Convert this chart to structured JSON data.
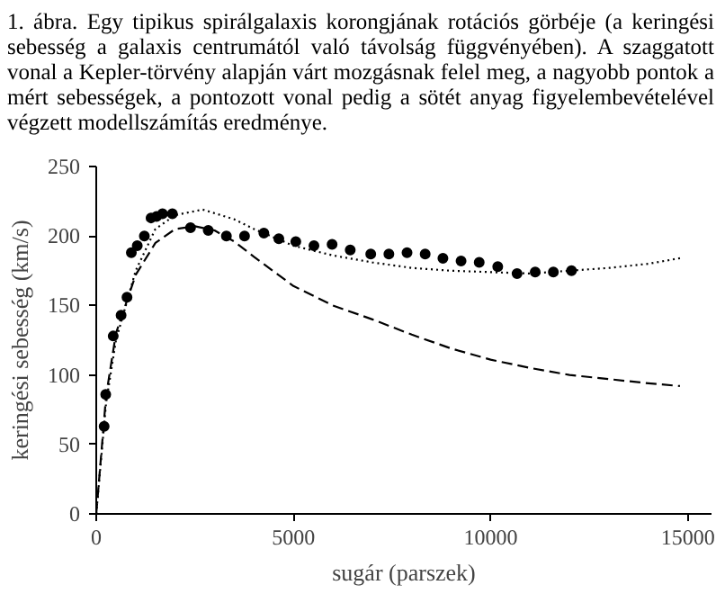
{
  "chart_data": {
    "type": "scatter",
    "title": "1. ábra. Egy tipikus spirálgalaxis korongjának rotációs görbéje (a keringési sebesség a galaxis centrumától való távolság függvényében). A szaggatott vonal a Kepler-törvény alapján várt mozgásnak felel meg, a nagyobb pontok a mért sebességek, a pontozott vonal pedig a sötét anyag figyelembevételével végzett modellszámítás eredménye.",
    "xlabel": "sugár (parszek)",
    "ylabel": "keringési sebesség (km/s)",
    "xlim": [
      0,
      15600
    ],
    "ylim": [
      0,
      250
    ],
    "xticks": [
      0,
      5000,
      10000,
      15000
    ],
    "yticks": [
      0,
      50,
      100,
      150,
      200,
      250
    ],
    "grid": false,
    "series": [
      {
        "marker": "circle",
        "color": "#000000",
        "x": [
          200,
          240,
          430,
          630,
          780,
          890,
          1040,
          1220,
          1390,
          1530,
          1680,
          1930,
          2390,
          2840,
          3300,
          3760,
          4250,
          4630,
          5060,
          5520,
          5980,
          6440,
          6960,
          7420,
          7880,
          8340,
          8790,
          9250,
          9710,
          10180,
          10670,
          11130,
          11590,
          12050
        ],
        "values": [
          63,
          86,
          128,
          143,
          156,
          188,
          193,
          200,
          213,
          214,
          216,
          216,
          206,
          204,
          200,
          200,
          202,
          198,
          196,
          193,
          194,
          190,
          187,
          187,
          188,
          187,
          184,
          182,
          181,
          178,
          173,
          174,
          174,
          175
        ]
      },
      {
        "type": "line",
        "line_style": "dashed",
        "color": "#000000",
        "x": [
          0,
          250,
          500,
          1000,
          1500,
          2000,
          2500,
          3000,
          3500,
          4000,
          5000,
          6000,
          7000,
          8000,
          9000,
          10000,
          11000,
          12000,
          13000,
          14000,
          14800
        ],
        "values": [
          0,
          85,
          130,
          172,
          195,
          205,
          207,
          204,
          196,
          185,
          164,
          150,
          140,
          129,
          119,
          111,
          105,
          100,
          97,
          94,
          92
        ]
      },
      {
        "type": "line",
        "line_style": "dotted",
        "color": "#000000",
        "x": [
          0,
          250,
          500,
          1000,
          1500,
          2000,
          2700,
          3500,
          4000,
          5000,
          6000,
          7000,
          8000,
          9000,
          10000,
          11000,
          12000,
          13000,
          14000,
          14800
        ],
        "values": [
          0,
          80,
          125,
          175,
          205,
          215,
          219,
          212,
          205,
          193,
          186,
          181,
          177,
          175,
          174,
          173,
          175,
          177,
          180,
          184
        ]
      }
    ]
  }
}
